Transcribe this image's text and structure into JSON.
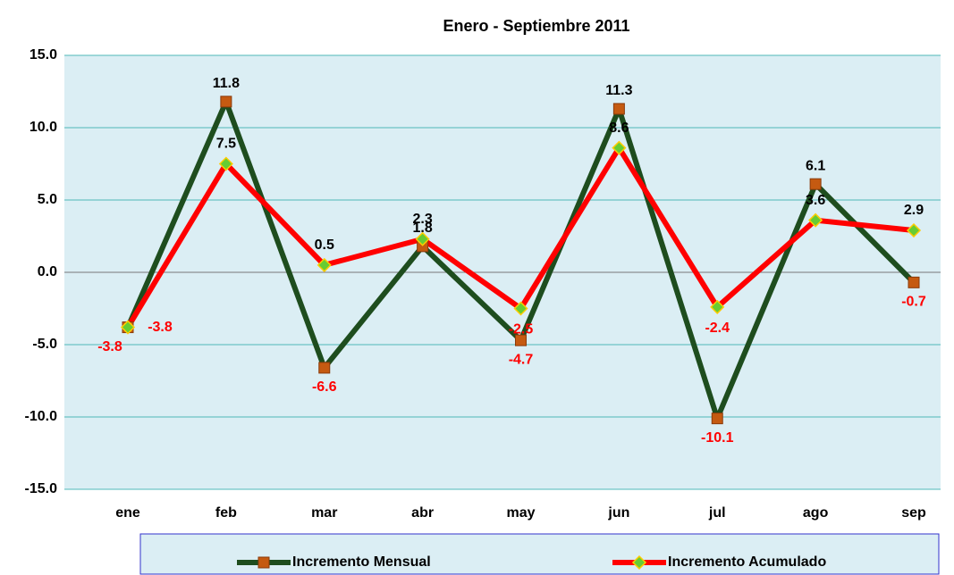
{
  "chart_data": {
    "type": "line",
    "title": "Enero - Septiembre 2011",
    "categories": [
      "ene",
      "feb",
      "mar",
      "abr",
      "may",
      "jun",
      "jul",
      "ago",
      "sep"
    ],
    "series": [
      {
        "name": "Incremento Mensual",
        "color": "#1e4d1e",
        "marker_color": "#c55a11",
        "marker": "square",
        "values": [
          -3.8,
          11.8,
          -6.6,
          1.8,
          -4.7,
          11.3,
          -10.1,
          6.1,
          -0.7
        ]
      },
      {
        "name": "Incremento Acumulado",
        "color": "#ff0000",
        "marker_color": "#66cc33",
        "marker": "diamond",
        "values": [
          -3.8,
          7.5,
          0.5,
          2.3,
          -2.5,
          8.6,
          -2.4,
          3.6,
          2.9
        ]
      }
    ],
    "ylim": [
      -15,
      15
    ],
    "yticks": [
      {
        "value": -15,
        "label": "-15.0"
      },
      {
        "value": -10,
        "label": "-10.0"
      },
      {
        "value": -5,
        "label": "-5.0"
      },
      {
        "value": 0,
        "label": "0.0"
      },
      {
        "value": 5,
        "label": "5.0"
      },
      {
        "value": 10,
        "label": "10.0"
      },
      {
        "value": 15,
        "label": "15.0"
      }
    ],
    "grid": true,
    "legend": "bottom",
    "label_colors": {
      "positive": "#000000",
      "negative": "#ff0000"
    }
  }
}
